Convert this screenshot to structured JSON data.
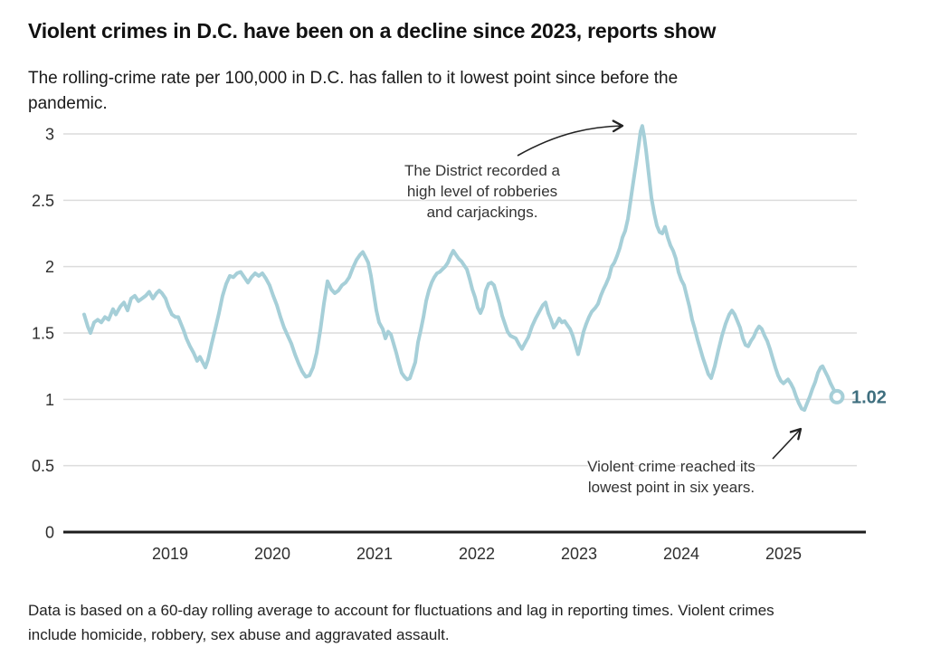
{
  "header": {
    "title": "Violent crimes in D.C. have been on a decline since 2023, reports show",
    "subtitle_lines": [
      "The rolling-crime rate per 100,000 in D.C. has fallen to it lowest point since before the",
      "pandemic."
    ]
  },
  "footer": {
    "note_lines": [
      "Data is based on a 60-day rolling average to account for fluctuations and lag in reporting times. Violent crimes",
      "include homicide, robbery, sex abuse and aggravated assault."
    ]
  },
  "chart_data": {
    "type": "line",
    "title": "",
    "xlabel": "",
    "ylabel": "",
    "x_ticks": [
      2019,
      2020,
      2021,
      2022,
      2023,
      2024,
      2025
    ],
    "y_ticks": [
      0,
      0.5,
      1,
      1.5,
      2,
      2.5,
      3
    ],
    "xlim": [
      2018.0,
      2025.7
    ],
    "ylim": [
      0,
      3
    ],
    "grid": "horizontal",
    "legend": "none",
    "colors": {
      "line": "#a6cfd8",
      "end_label": "#3f6f7f",
      "grid": "#dcdcdc",
      "axis": "#1d1d1d",
      "arrow": "#222222"
    },
    "end_label": {
      "value": "1.02"
    },
    "annotations": [
      {
        "text_lines": [
          "The District recorded a",
          "high level of robberies",
          "and carjackings."
        ]
      },
      {
        "text_lines": [
          "Violent crime reached its",
          "lowest point in six years."
        ]
      }
    ],
    "series": [
      {
        "points": [
          [
            2018.159,
            1.64
          ],
          [
            2018.195,
            1.55
          ],
          [
            2018.221,
            1.5
          ],
          [
            2018.257,
            1.58
          ],
          [
            2018.292,
            1.6
          ],
          [
            2018.327,
            1.58
          ],
          [
            2018.363,
            1.62
          ],
          [
            2018.398,
            1.6
          ],
          [
            2018.442,
            1.68
          ],
          [
            2018.469,
            1.64
          ],
          [
            2018.513,
            1.7
          ],
          [
            2018.549,
            1.73
          ],
          [
            2018.584,
            1.67
          ],
          [
            2018.619,
            1.76
          ],
          [
            2018.655,
            1.78
          ],
          [
            2018.69,
            1.74
          ],
          [
            2018.726,
            1.76
          ],
          [
            2018.761,
            1.78
          ],
          [
            2018.796,
            1.81
          ],
          [
            2018.832,
            1.76
          ],
          [
            2018.867,
            1.8
          ],
          [
            2018.894,
            1.82
          ],
          [
            2018.92,
            1.8
          ],
          [
            2018.956,
            1.76
          ],
          [
            2018.982,
            1.7
          ],
          [
            2019.018,
            1.64
          ],
          [
            2019.053,
            1.62
          ],
          [
            2019.08,
            1.62
          ],
          [
            2019.106,
            1.57
          ],
          [
            2019.133,
            1.52
          ],
          [
            2019.159,
            1.46
          ],
          [
            2019.195,
            1.4
          ],
          [
            2019.23,
            1.35
          ],
          [
            2019.265,
            1.29
          ],
          [
            2019.292,
            1.32
          ],
          [
            2019.319,
            1.28
          ],
          [
            2019.345,
            1.24
          ],
          [
            2019.372,
            1.3
          ],
          [
            2019.407,
            1.42
          ],
          [
            2019.442,
            1.53
          ],
          [
            2019.478,
            1.65
          ],
          [
            2019.513,
            1.78
          ],
          [
            2019.549,
            1.87
          ],
          [
            2019.584,
            1.93
          ],
          [
            2019.619,
            1.92
          ],
          [
            2019.655,
            1.95
          ],
          [
            2019.69,
            1.96
          ],
          [
            2019.726,
            1.92
          ],
          [
            2019.761,
            1.88
          ],
          [
            2019.796,
            1.92
          ],
          [
            2019.832,
            1.95
          ],
          [
            2019.867,
            1.93
          ],
          [
            2019.903,
            1.95
          ],
          [
            2019.938,
            1.91
          ],
          [
            2019.973,
            1.86
          ],
          [
            2020.009,
            1.78
          ],
          [
            2020.044,
            1.71
          ],
          [
            2020.08,
            1.62
          ],
          [
            2020.115,
            1.54
          ],
          [
            2020.15,
            1.48
          ],
          [
            2020.186,
            1.42
          ],
          [
            2020.221,
            1.34
          ],
          [
            2020.257,
            1.27
          ],
          [
            2020.292,
            1.21
          ],
          [
            2020.327,
            1.17
          ],
          [
            2020.363,
            1.18
          ],
          [
            2020.398,
            1.24
          ],
          [
            2020.434,
            1.35
          ],
          [
            2020.469,
            1.52
          ],
          [
            2020.504,
            1.72
          ],
          [
            2020.54,
            1.89
          ],
          [
            2020.575,
            1.83
          ],
          [
            2020.611,
            1.8
          ],
          [
            2020.646,
            1.82
          ],
          [
            2020.681,
            1.86
          ],
          [
            2020.717,
            1.88
          ],
          [
            2020.752,
            1.92
          ],
          [
            2020.788,
            1.99
          ],
          [
            2020.823,
            2.05
          ],
          [
            2020.858,
            2.09
          ],
          [
            2020.885,
            2.11
          ],
          [
            2020.912,
            2.07
          ],
          [
            2020.938,
            2.03
          ],
          [
            2020.965,
            1.93
          ],
          [
            2020.991,
            1.8
          ],
          [
            2021.018,
            1.67
          ],
          [
            2021.044,
            1.58
          ],
          [
            2021.08,
            1.53
          ],
          [
            2021.106,
            1.46
          ],
          [
            2021.133,
            1.51
          ],
          [
            2021.159,
            1.49
          ],
          [
            2021.186,
            1.42
          ],
          [
            2021.212,
            1.35
          ],
          [
            2021.239,
            1.27
          ],
          [
            2021.265,
            1.2
          ],
          [
            2021.292,
            1.17
          ],
          [
            2021.319,
            1.15
          ],
          [
            2021.345,
            1.16
          ],
          [
            2021.372,
            1.22
          ],
          [
            2021.398,
            1.28
          ],
          [
            2021.425,
            1.43
          ],
          [
            2021.451,
            1.52
          ],
          [
            2021.478,
            1.62
          ],
          [
            2021.504,
            1.74
          ],
          [
            2021.531,
            1.82
          ],
          [
            2021.558,
            1.88
          ],
          [
            2021.584,
            1.92
          ],
          [
            2021.611,
            1.95
          ],
          [
            2021.637,
            1.96
          ],
          [
            2021.664,
            1.98
          ],
          [
            2021.69,
            2.0
          ],
          [
            2021.717,
            2.03
          ],
          [
            2021.743,
            2.08
          ],
          [
            2021.77,
            2.12
          ],
          [
            2021.796,
            2.09
          ],
          [
            2021.823,
            2.06
          ],
          [
            2021.85,
            2.04
          ],
          [
            2021.876,
            2.01
          ],
          [
            2021.903,
            1.98
          ],
          [
            2021.929,
            1.91
          ],
          [
            2021.956,
            1.83
          ],
          [
            2021.982,
            1.77
          ],
          [
            2022.009,
            1.69
          ],
          [
            2022.035,
            1.65
          ],
          [
            2022.062,
            1.7
          ],
          [
            2022.088,
            1.82
          ],
          [
            2022.115,
            1.87
          ],
          [
            2022.142,
            1.88
          ],
          [
            2022.168,
            1.86
          ],
          [
            2022.195,
            1.79
          ],
          [
            2022.221,
            1.72
          ],
          [
            2022.248,
            1.63
          ],
          [
            2022.274,
            1.57
          ],
          [
            2022.301,
            1.51
          ],
          [
            2022.327,
            1.48
          ],
          [
            2022.354,
            1.47
          ],
          [
            2022.381,
            1.46
          ],
          [
            2022.416,
            1.41
          ],
          [
            2022.442,
            1.38
          ],
          [
            2022.469,
            1.42
          ],
          [
            2022.504,
            1.47
          ],
          [
            2022.54,
            1.55
          ],
          [
            2022.575,
            1.61
          ],
          [
            2022.611,
            1.66
          ],
          [
            2022.646,
            1.71
          ],
          [
            2022.673,
            1.73
          ],
          [
            2022.699,
            1.65
          ],
          [
            2022.726,
            1.6
          ],
          [
            2022.752,
            1.54
          ],
          [
            2022.779,
            1.57
          ],
          [
            2022.805,
            1.61
          ],
          [
            2022.832,
            1.58
          ],
          [
            2022.858,
            1.59
          ],
          [
            2022.885,
            1.56
          ],
          [
            2022.912,
            1.53
          ],
          [
            2022.938,
            1.48
          ],
          [
            2022.965,
            1.41
          ],
          [
            2022.991,
            1.34
          ],
          [
            2023.018,
            1.42
          ],
          [
            2023.044,
            1.51
          ],
          [
            2023.071,
            1.57
          ],
          [
            2023.097,
            1.62
          ],
          [
            2023.124,
            1.66
          ],
          [
            2023.159,
            1.69
          ],
          [
            2023.186,
            1.72
          ],
          [
            2023.212,
            1.78
          ],
          [
            2023.239,
            1.83
          ],
          [
            2023.265,
            1.87
          ],
          [
            2023.292,
            1.92
          ],
          [
            2023.319,
            2.0
          ],
          [
            2023.345,
            2.03
          ],
          [
            2023.372,
            2.08
          ],
          [
            2023.398,
            2.14
          ],
          [
            2023.425,
            2.22
          ],
          [
            2023.451,
            2.27
          ],
          [
            2023.478,
            2.36
          ],
          [
            2023.504,
            2.5
          ],
          [
            2023.531,
            2.64
          ],
          [
            2023.558,
            2.78
          ],
          [
            2023.584,
            2.92
          ],
          [
            2023.602,
            3.02
          ],
          [
            2023.619,
            3.06
          ],
          [
            2023.637,
            2.98
          ],
          [
            2023.655,
            2.88
          ],
          [
            2023.681,
            2.7
          ],
          [
            2023.708,
            2.52
          ],
          [
            2023.735,
            2.4
          ],
          [
            2023.761,
            2.31
          ],
          [
            2023.788,
            2.26
          ],
          [
            2023.814,
            2.25
          ],
          [
            2023.841,
            2.3
          ],
          [
            2023.867,
            2.22
          ],
          [
            2023.894,
            2.16
          ],
          [
            2023.92,
            2.12
          ],
          [
            2023.947,
            2.06
          ],
          [
            2023.973,
            1.96
          ],
          [
            2024.0,
            1.9
          ],
          [
            2024.027,
            1.86
          ],
          [
            2024.053,
            1.78
          ],
          [
            2024.08,
            1.7
          ],
          [
            2024.106,
            1.6
          ],
          [
            2024.133,
            1.53
          ],
          [
            2024.159,
            1.45
          ],
          [
            2024.186,
            1.38
          ],
          [
            2024.212,
            1.31
          ],
          [
            2024.239,
            1.25
          ],
          [
            2024.265,
            1.19
          ],
          [
            2024.292,
            1.16
          ],
          [
            2024.327,
            1.25
          ],
          [
            2024.363,
            1.37
          ],
          [
            2024.398,
            1.48
          ],
          [
            2024.434,
            1.57
          ],
          [
            2024.469,
            1.64
          ],
          [
            2024.496,
            1.67
          ],
          [
            2024.522,
            1.64
          ],
          [
            2024.549,
            1.59
          ],
          [
            2024.575,
            1.54
          ],
          [
            2024.602,
            1.46
          ],
          [
            2024.628,
            1.41
          ],
          [
            2024.655,
            1.4
          ],
          [
            2024.681,
            1.44
          ],
          [
            2024.708,
            1.47
          ],
          [
            2024.735,
            1.52
          ],
          [
            2024.761,
            1.55
          ],
          [
            2024.788,
            1.53
          ],
          [
            2024.814,
            1.48
          ],
          [
            2024.841,
            1.44
          ],
          [
            2024.867,
            1.38
          ],
          [
            2024.894,
            1.31
          ],
          [
            2024.92,
            1.24
          ],
          [
            2024.947,
            1.18
          ],
          [
            2024.973,
            1.14
          ],
          [
            2025.0,
            1.12
          ],
          [
            2025.027,
            1.14
          ],
          [
            2025.044,
            1.15
          ],
          [
            2025.071,
            1.12
          ],
          [
            2025.097,
            1.08
          ],
          [
            2025.124,
            1.02
          ],
          [
            2025.15,
            0.97
          ],
          [
            2025.177,
            0.93
          ],
          [
            2025.204,
            0.92
          ],
          [
            2025.23,
            0.97
          ],
          [
            2025.257,
            1.02
          ],
          [
            2025.283,
            1.08
          ],
          [
            2025.31,
            1.13
          ],
          [
            2025.336,
            1.2
          ],
          [
            2025.363,
            1.24
          ],
          [
            2025.381,
            1.25
          ],
          [
            2025.407,
            1.21
          ],
          [
            2025.434,
            1.17
          ],
          [
            2025.46,
            1.12
          ],
          [
            2025.487,
            1.08
          ],
          [
            2025.522,
            1.02
          ]
        ]
      }
    ]
  }
}
